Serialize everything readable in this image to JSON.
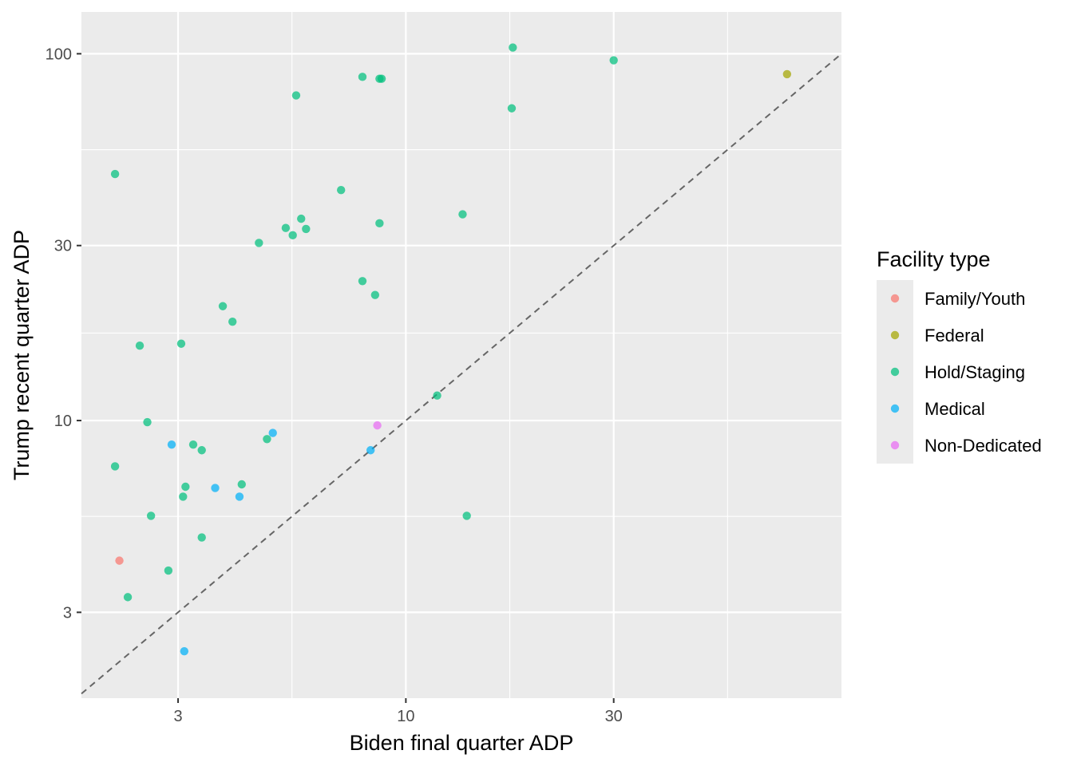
{
  "chart_data": {
    "type": "scatter",
    "title": "",
    "xlabel": "Biden final quarter ADP",
    "ylabel": "Trump recent quarter ADP",
    "x_scale": "log10",
    "y_scale": "log10",
    "xlim": [
      1.8,
      100
    ],
    "ylim": [
      1.75,
      130
    ],
    "x_ticks": [
      3,
      10,
      30
    ],
    "x_tick_labels": [
      "3",
      "10",
      "30"
    ],
    "y_ticks": [
      3,
      10,
      30,
      100
    ],
    "y_tick_labels": [
      "3",
      "10",
      "30",
      "100"
    ],
    "grid": true,
    "reference_line": "y = x",
    "legend": {
      "title": "Facility type",
      "position": "right",
      "entries": [
        {
          "name": "Family/Youth",
          "color": "#F8766D"
        },
        {
          "name": "Federal",
          "color": "#A3A500"
        },
        {
          "name": "Hold/Staging",
          "color": "#00BF7D"
        },
        {
          "name": "Medical",
          "color": "#00B0F6"
        },
        {
          "name": "Non-Dedicated",
          "color": "#E76BF3"
        }
      ]
    },
    "series": [
      {
        "name": "Family/Youth",
        "color": "#F8766D",
        "points": [
          [
            2.2,
            4.15
          ]
        ]
      },
      {
        "name": "Federal",
        "color": "#A3A500",
        "points": [
          [
            75,
            88
          ]
        ]
      },
      {
        "name": "Hold/Staging",
        "color": "#00BF7D",
        "points": [
          [
            2.15,
            47
          ],
          [
            2.15,
            7.5
          ],
          [
            2.3,
            3.3
          ],
          [
            2.45,
            16
          ],
          [
            2.55,
            9.9
          ],
          [
            2.6,
            5.5
          ],
          [
            2.85,
            3.9
          ],
          [
            3.05,
            16.2
          ],
          [
            3.08,
            6.2
          ],
          [
            3.12,
            6.6
          ],
          [
            3.25,
            8.6
          ],
          [
            3.4,
            8.3
          ],
          [
            3.4,
            4.8
          ],
          [
            3.8,
            20.5
          ],
          [
            4.0,
            18.6
          ],
          [
            4.2,
            6.7
          ],
          [
            4.6,
            30.5
          ],
          [
            4.8,
            8.9
          ],
          [
            5.3,
            33.5
          ],
          [
            5.5,
            32
          ],
          [
            5.6,
            77
          ],
          [
            5.75,
            35.5
          ],
          [
            5.9,
            33.3
          ],
          [
            7.1,
            42.5
          ],
          [
            7.95,
            86.5
          ],
          [
            7.95,
            24
          ],
          [
            8.5,
            22
          ],
          [
            8.7,
            85.5
          ],
          [
            8.8,
            85.5
          ],
          [
            8.7,
            34.5
          ],
          [
            11.8,
            11.7
          ],
          [
            13.5,
            36.5
          ],
          [
            13.8,
            5.5
          ],
          [
            17.5,
            71
          ],
          [
            17.6,
            104
          ],
          [
            30,
            96
          ]
        ]
      },
      {
        "name": "Medical",
        "color": "#00B0F6",
        "points": [
          [
            2.9,
            8.6
          ],
          [
            3.1,
            2.35
          ],
          [
            3.65,
            6.55
          ],
          [
            4.15,
            6.2
          ],
          [
            4.95,
            9.25
          ],
          [
            8.3,
            8.3
          ]
        ]
      },
      {
        "name": "Non-Dedicated",
        "color": "#E76BF3",
        "points": [
          [
            8.6,
            9.7
          ]
        ]
      }
    ]
  }
}
